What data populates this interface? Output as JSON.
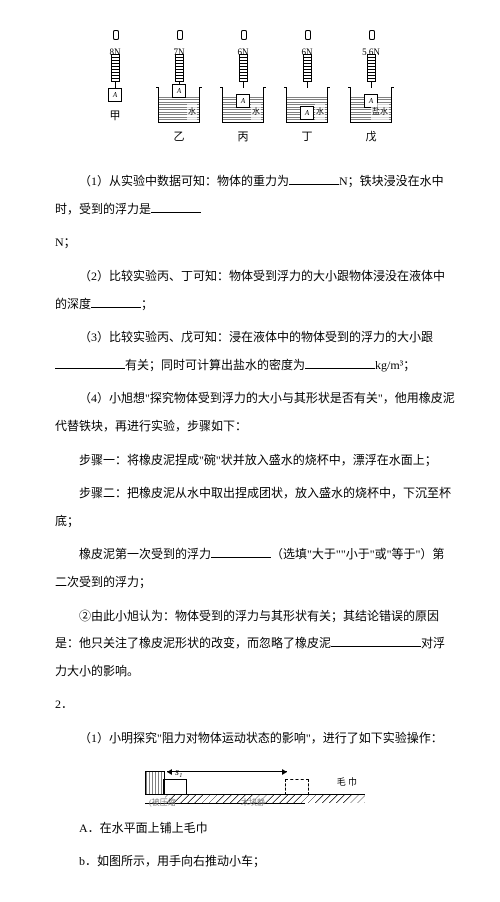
{
  "fig": {
    "items": [
      {
        "n": "8N",
        "cl": "甲",
        "liq": "",
        "bpos": "pos-mid",
        "air": true
      },
      {
        "n": "7N",
        "cl": "乙",
        "liq": "水",
        "bpos": "pos-surf",
        "air": false
      },
      {
        "n": "6N",
        "cl": "丙",
        "liq": "水",
        "bpos": "pos-mid",
        "air": false
      },
      {
        "n": "6N",
        "cl": "丁",
        "liq": "水",
        "bpos": "pos-bot",
        "air": false
      },
      {
        "n": "5.6N",
        "cl": "戊",
        "liq": "盐水",
        "bpos": "pos-mid",
        "air": false
      }
    ],
    "block_label": "A"
  },
  "q1": {
    "pre": "（1）从实验中数据可知：物体的重力为",
    "mid": "N；铁块浸没在水中时，受到的浮力是",
    "end": "N；"
  },
  "q2": {
    "pre": "（2）比较实验丙、丁可知：物体受到浮力的大小跟物体浸没在液体中的深度",
    "end": "；"
  },
  "q3": {
    "pre": "（3）比较实验丙、戊可知：浸在液体中的物体受到的浮力的大小跟",
    "mid": "有关；同时可计算出盐水的密度为",
    "unit": "kg/m³；"
  },
  "q4": {
    "intro": "（4）小旭想\"探究物体受到浮力的大小与其形状是否有关\"，他用橡皮泥代替铁块，再进行实验，步骤如下：",
    "s1": "步骤一：将橡皮泥捏成\"碗\"状并放入盛水的烧杯中，漂浮在水面上；",
    "s2": "步骤二：把橡皮泥从水中取出捏成团状，放入盛水的烧杯中，下沉至杯底；",
    "c_pre": "橡皮泥第一次受到的浮力",
    "c_mid": "（选填\"大于\"\"小于\"或\"等于\"）第二次受到的浮力；",
    "d_pre": "②由此小旭认为：物体受到的浮力与其形状有关；其结论错误的原因是：他只关注了橡皮泥形状的改变，而忽略了橡皮泥",
    "d_end": "对浮力大小的影响。"
  },
  "sec2": "2．",
  "p2_1": "（1）小明探究\"阻力对物体运动状态的影响\"，进行了如下实验操作：",
  "fig2": {
    "s1": "s₁",
    "l1": "(被压缩",
    "l2": "木块静",
    "l3": "毛 巾"
  },
  "optA": "A．在水平面上铺上毛巾",
  "optB": "b．如图所示，用手向右推动小车；"
}
